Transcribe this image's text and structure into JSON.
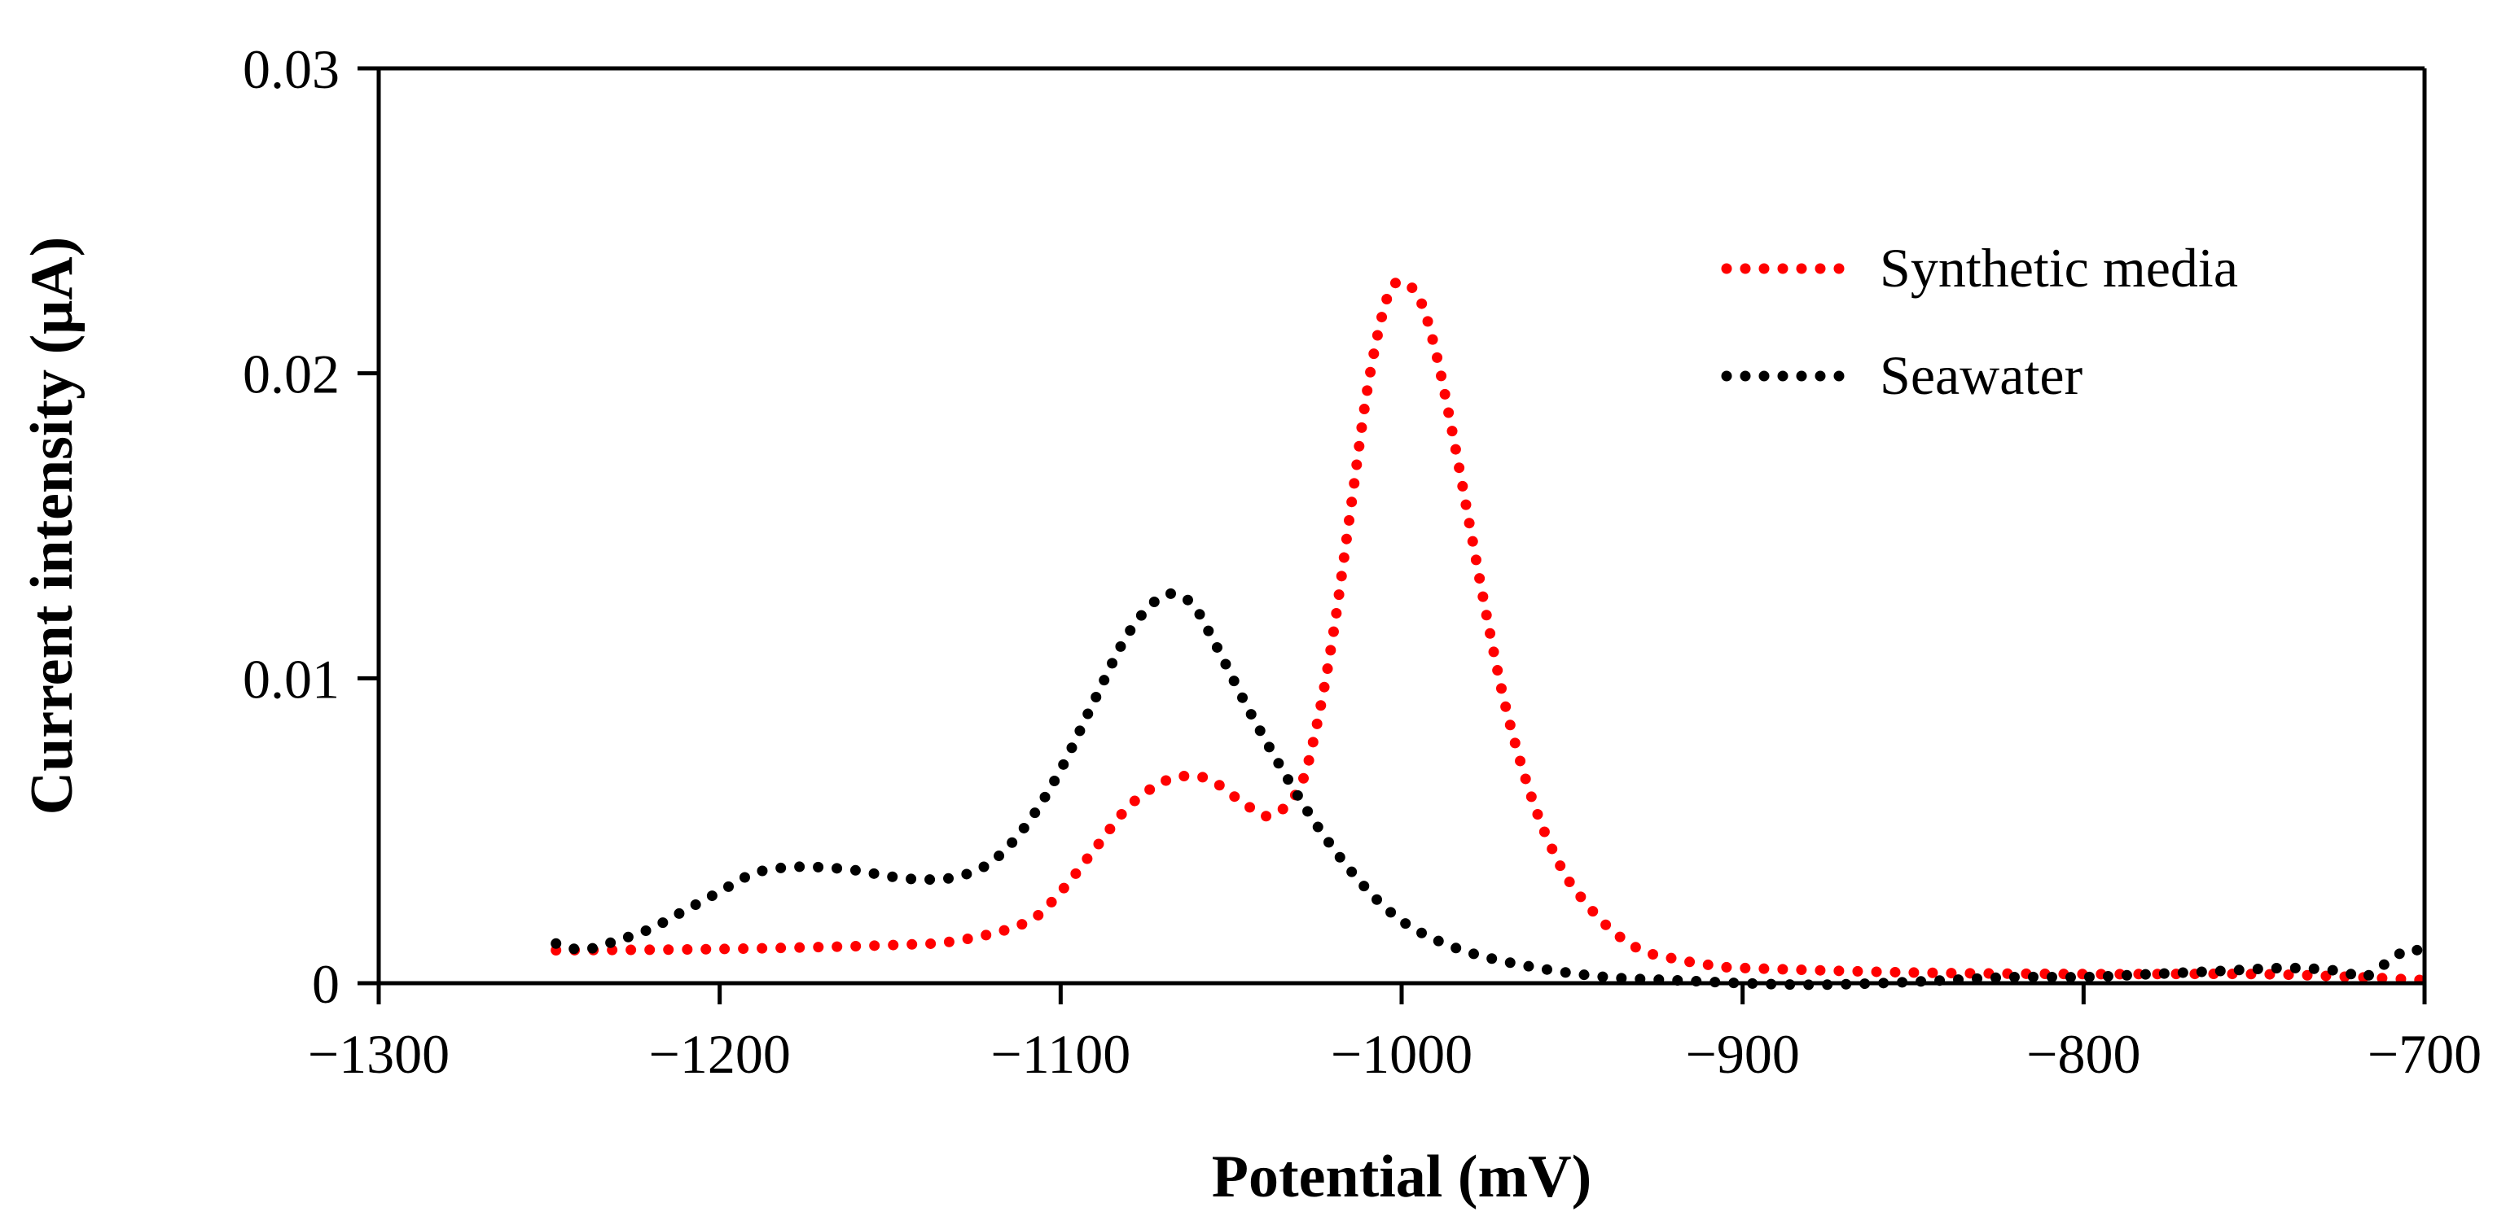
{
  "chart_data": {
    "type": "scatter",
    "title": "",
    "xlabel": "Potential (mV)",
    "ylabel": "Current intensity (μA)",
    "xlim": [
      -1300,
      -700
    ],
    "ylim": [
      0,
      0.03
    ],
    "xticks": [
      -1300,
      -1200,
      -1100,
      -1000,
      -900,
      -800,
      -700
    ],
    "xtick_labels": [
      "−1300",
      "−1200",
      "−1100",
      "−1000",
      "−900",
      "−800",
      "−700"
    ],
    "yticks": [
      0,
      0.01,
      0.02,
      0.03
    ],
    "ytick_labels": [
      "0",
      "0.01",
      "0.02",
      "0.03"
    ],
    "grid": false,
    "legend_position": "top-right",
    "series": [
      {
        "name": "Synthetic media",
        "color": "#ff0000",
        "points": [
          [
            -1248,
            0.00108
          ],
          [
            -1200,
            0.00112
          ],
          [
            -1150,
            0.00125
          ],
          [
            -1130,
            0.0014
          ],
          [
            -1110,
            0.002
          ],
          [
            -1100,
            0.003
          ],
          [
            -1090,
            0.0044
          ],
          [
            -1080,
            0.0058
          ],
          [
            -1070,
            0.0066
          ],
          [
            -1062,
            0.0068
          ],
          [
            -1055,
            0.0066
          ],
          [
            -1045,
            0.0058
          ],
          [
            -1038,
            0.0055
          ],
          [
            -1030,
            0.0064
          ],
          [
            -1025,
            0.0084
          ],
          [
            -1020,
            0.0115
          ],
          [
            -1015,
            0.0155
          ],
          [
            -1010,
            0.0195
          ],
          [
            -1005,
            0.0222
          ],
          [
            -1001,
            0.023
          ],
          [
            -995,
            0.0225
          ],
          [
            -990,
            0.0207
          ],
          [
            -985,
            0.018
          ],
          [
            -980,
            0.015
          ],
          [
            -975,
            0.012
          ],
          [
            -970,
            0.0093
          ],
          [
            -965,
            0.0072
          ],
          [
            -960,
            0.0055
          ],
          [
            -955,
            0.0042
          ],
          [
            -950,
            0.0032
          ],
          [
            -940,
            0.0019
          ],
          [
            -930,
            0.0011
          ],
          [
            -920,
            0.0008
          ],
          [
            -910,
            0.0006
          ],
          [
            -900,
            0.0005
          ],
          [
            -850,
            0.00035
          ],
          [
            -800,
            0.0003
          ],
          [
            -750,
            0.0003
          ],
          [
            -720,
            0.0002
          ],
          [
            -700,
            0.0001
          ]
        ]
      },
      {
        "name": "Seawater",
        "color": "#000000",
        "points": [
          [
            -1248,
            0.0013
          ],
          [
            -1240,
            0.0011
          ],
          [
            -1230,
            0.0014
          ],
          [
            -1220,
            0.0018
          ],
          [
            -1210,
            0.0024
          ],
          [
            -1200,
            0.003
          ],
          [
            -1190,
            0.0036
          ],
          [
            -1180,
            0.0038
          ],
          [
            -1170,
            0.0038
          ],
          [
            -1160,
            0.0037
          ],
          [
            -1150,
            0.0035
          ],
          [
            -1140,
            0.0034
          ],
          [
            -1130,
            0.0035
          ],
          [
            -1120,
            0.004
          ],
          [
            -1110,
            0.0052
          ],
          [
            -1100,
            0.007
          ],
          [
            -1090,
            0.0093
          ],
          [
            -1080,
            0.0115
          ],
          [
            -1070,
            0.0127
          ],
          [
            -1062,
            0.0125
          ],
          [
            -1055,
            0.0112
          ],
          [
            -1045,
            0.009
          ],
          [
            -1035,
            0.007
          ],
          [
            -1025,
            0.0052
          ],
          [
            -1015,
            0.0037
          ],
          [
            -1005,
            0.0025
          ],
          [
            -995,
            0.0017
          ],
          [
            -980,
            0.001
          ],
          [
            -960,
            0.0005
          ],
          [
            -940,
            0.0002
          ],
          [
            -920,
            0.0001
          ],
          [
            -900,
            0.0
          ],
          [
            -880,
            -5e-05
          ],
          [
            -860,
            0.0
          ],
          [
            -840,
            0.0001
          ],
          [
            -820,
            0.0002
          ],
          [
            -800,
            0.0002
          ],
          [
            -780,
            0.0003
          ],
          [
            -760,
            0.0004
          ],
          [
            -740,
            0.0005
          ],
          [
            -725,
            0.0004
          ],
          [
            -718,
            0.0002
          ],
          [
            -712,
            0.0006
          ],
          [
            -705,
            0.0011
          ],
          [
            -700,
            0.001
          ]
        ]
      }
    ]
  }
}
